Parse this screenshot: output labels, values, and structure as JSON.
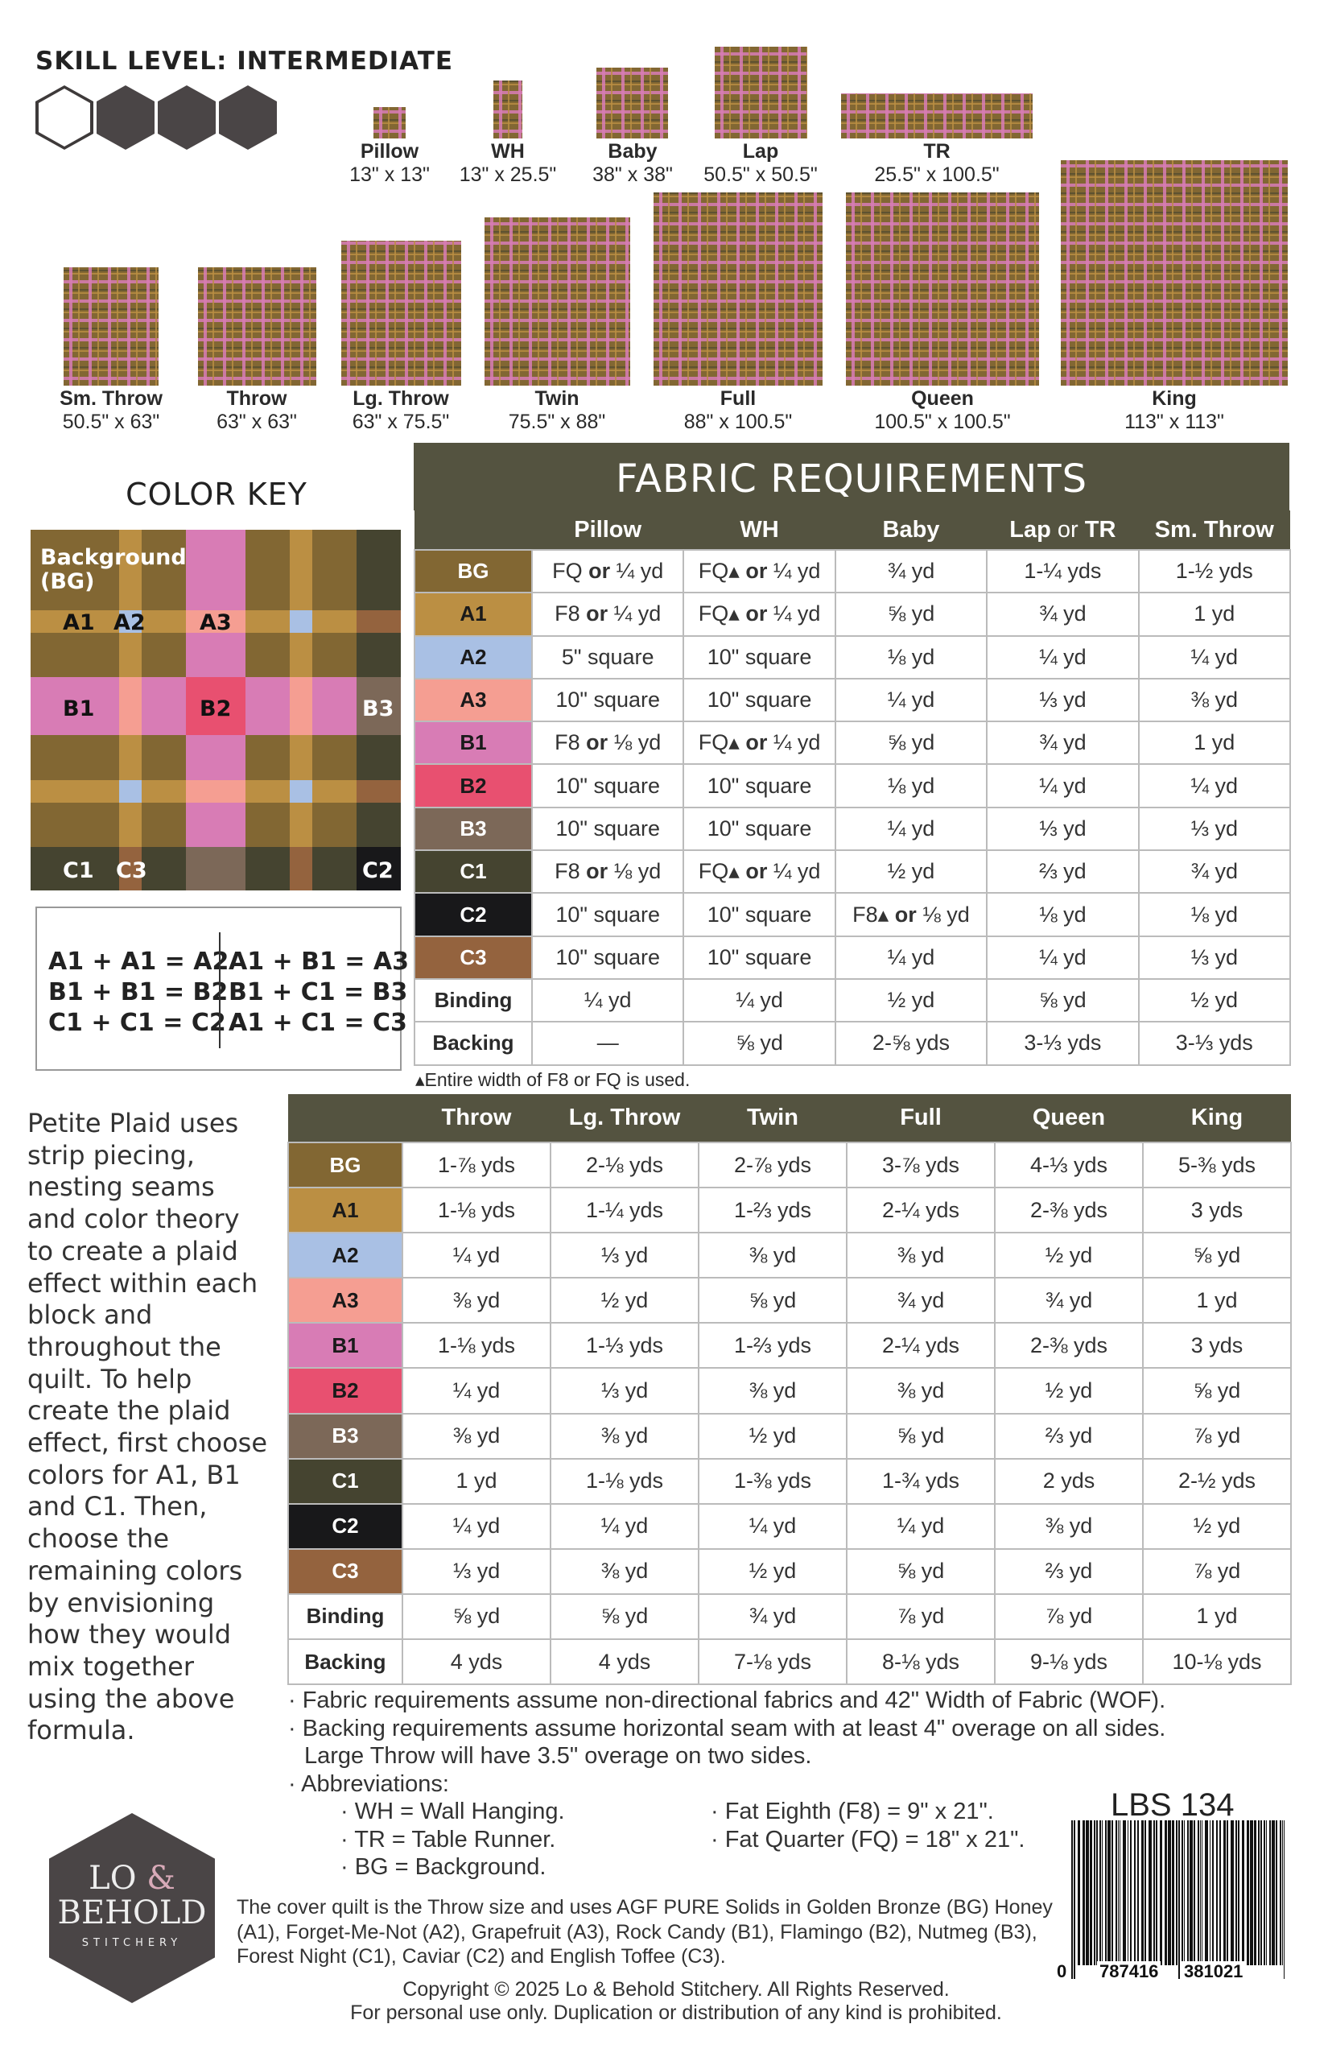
{
  "skill_level": "SKILL LEVEL: INTERMEDIATE",
  "skill_rating": {
    "filled": 3,
    "total": 4
  },
  "sizes": [
    {
      "name": "Pillow",
      "dims": "13\" x 13\""
    },
    {
      "name": "WH",
      "dims": "13\" x 25.5\""
    },
    {
      "name": "Baby",
      "dims": "38\" x 38\""
    },
    {
      "name": "Lap",
      "dims": "50.5\" x 50.5\""
    },
    {
      "name": "TR",
      "dims": "25.5\" x 100.5\""
    },
    {
      "name": "Sm. Throw",
      "dims": "50.5\" x 63\""
    },
    {
      "name": "Throw",
      "dims": "63\" x 63\""
    },
    {
      "name": "Lg. Throw",
      "dims": "63\" x 75.5\""
    },
    {
      "name": "Twin",
      "dims": "75.5\" x 88\""
    },
    {
      "name": "Full",
      "dims": "88\" x 100.5\""
    },
    {
      "name": "Queen",
      "dims": "100.5\" x 100.5\""
    },
    {
      "name": "King",
      "dims": "113\" x 113\""
    }
  ],
  "color_key": {
    "title": "COLOR KEY",
    "background_label": "Background (BG)",
    "labels": {
      "A1": "A1",
      "A2": "A2",
      "A3": "A3",
      "B1": "B1",
      "B2": "B2",
      "B3": "B3",
      "C1": "C1",
      "C2": "C2",
      "C3": "C3"
    },
    "colors": {
      "BG": "#826733",
      "A1": "#bb8f43",
      "A2": "#a9c0e4",
      "A3": "#f59e92",
      "B1": "#d87cb5",
      "B2": "#e85070",
      "B3": "#7c6858",
      "C1": "#454430",
      "C2": "#18181a",
      "C3": "#94633e"
    },
    "formulas_left": [
      "A1 + A1 = A2",
      "B1 + B1 = B2",
      "C1 + C1 = C2"
    ],
    "formulas_right": [
      "A1 + B1 = A3",
      "B1 + C1 = B3",
      "A1 + C1 = C3"
    ]
  },
  "fabric_requirements": {
    "title": "FABRIC REQUIREMENTS",
    "header_color": "#545340",
    "table1": {
      "columns": [
        "Pillow",
        "WH",
        "Baby",
        "Lap or TR",
        "Sm. Throw"
      ],
      "rows": [
        {
          "label": "BG",
          "cells": [
            "FQ or ¼ yd",
            "FQ▴ or ¼ yd",
            "¾ yd",
            "1-¼ yds",
            "1-½ yds"
          ]
        },
        {
          "label": "A1",
          "cells": [
            "F8 or ¼ yd",
            "FQ▴ or ¼ yd",
            "⅝ yd",
            "¾ yd",
            "1 yd"
          ]
        },
        {
          "label": "A2",
          "cells": [
            "5\" square",
            "10\" square",
            "⅛ yd",
            "¼ yd",
            "¼ yd"
          ]
        },
        {
          "label": "A3",
          "cells": [
            "10\" square",
            "10\" square",
            "¼ yd",
            "⅓ yd",
            "⅜ yd"
          ]
        },
        {
          "label": "B1",
          "cells": [
            "F8 or ⅛ yd",
            "FQ▴ or ¼ yd",
            "⅝ yd",
            "¾ yd",
            "1 yd"
          ]
        },
        {
          "label": "B2",
          "cells": [
            "10\" square",
            "10\" square",
            "⅛ yd",
            "¼ yd",
            "¼ yd"
          ]
        },
        {
          "label": "B3",
          "cells": [
            "10\" square",
            "10\" square",
            "¼ yd",
            "⅓ yd",
            "⅓ yd"
          ]
        },
        {
          "label": "C1",
          "cells": [
            "F8 or ⅛ yd",
            "FQ▴ or ¼ yd",
            "½ yd",
            "⅔ yd",
            "¾ yd"
          ]
        },
        {
          "label": "C2",
          "cells": [
            "10\" square",
            "10\" square",
            "F8▴ or ⅛ yd",
            "⅛ yd",
            "⅛ yd"
          ]
        },
        {
          "label": "C3",
          "cells": [
            "10\" square",
            "10\" square",
            "¼ yd",
            "¼ yd",
            "⅓ yd"
          ]
        },
        {
          "label": "Binding",
          "cells": [
            "¼ yd",
            "¼ yd",
            "½ yd",
            "⅝ yd",
            "½ yd"
          ]
        },
        {
          "label": "Backing",
          "cells": [
            "—",
            "⅝ yd",
            "2-⅝ yds",
            "3-⅓ yds",
            "3-⅓ yds"
          ]
        }
      ],
      "footnote": "▴Entire width of F8 or FQ is used."
    },
    "table2": {
      "columns": [
        "Throw",
        "Lg. Throw",
        "Twin",
        "Full",
        "Queen",
        "King"
      ],
      "rows": [
        {
          "label": "BG",
          "cells": [
            "1-⅞ yds",
            "2-⅛ yds",
            "2-⅞ yds",
            "3-⅞ yds",
            "4-⅓ yds",
            "5-⅜ yds"
          ]
        },
        {
          "label": "A1",
          "cells": [
            "1-⅛ yds",
            "1-¼ yds",
            "1-⅔ yds",
            "2-¼ yds",
            "2-⅜ yds",
            "3 yds"
          ]
        },
        {
          "label": "A2",
          "cells": [
            "¼ yd",
            "⅓ yd",
            "⅜ yd",
            "⅜ yd",
            "½ yd",
            "⅝ yd"
          ]
        },
        {
          "label": "A3",
          "cells": [
            "⅜ yd",
            "½ yd",
            "⅝ yd",
            "¾ yd",
            "¾ yd",
            "1 yd"
          ]
        },
        {
          "label": "B1",
          "cells": [
            "1-⅛ yds",
            "1-⅓ yds",
            "1-⅔ yds",
            "2-¼ yds",
            "2-⅜ yds",
            "3 yds"
          ]
        },
        {
          "label": "B2",
          "cells": [
            "¼ yd",
            "⅓ yd",
            "⅜ yd",
            "⅜ yd",
            "½ yd",
            "⅝ yd"
          ]
        },
        {
          "label": "B3",
          "cells": [
            "⅜ yd",
            "⅜ yd",
            "½ yd",
            "⅝ yd",
            "⅔ yd",
            "⅞ yd"
          ]
        },
        {
          "label": "C1",
          "cells": [
            "1 yd",
            "1-⅛ yds",
            "1-⅜ yds",
            "1-¾ yds",
            "2 yds",
            "2-½ yds"
          ]
        },
        {
          "label": "C2",
          "cells": [
            "¼ yd",
            "¼ yd",
            "¼ yd",
            "¼ yd",
            "⅜ yd",
            "½ yd"
          ]
        },
        {
          "label": "C3",
          "cells": [
            "⅓ yd",
            "⅜ yd",
            "½ yd",
            "⅝ yd",
            "⅔ yd",
            "⅞ yd"
          ]
        },
        {
          "label": "Binding",
          "cells": [
            "⅝ yd",
            "⅝ yd",
            "¾ yd",
            "⅞ yd",
            "⅞ yd",
            "1 yd"
          ]
        },
        {
          "label": "Backing",
          "cells": [
            "4 yds",
            "4 yds",
            "7-⅛ yds",
            "8-⅛ yds",
            "9-⅛ yds",
            "10-⅛ yds"
          ]
        }
      ]
    }
  },
  "description": "Petite Plaid uses strip piecing, nesting seams and color theory to create a plaid effect within each block and throughout the quilt. To help create the plaid effect, first choose colors for A1, B1 and C1. Then, choose the remaining colors by envisioning how they would mix together using the above formula.",
  "notes": {
    "n1": "· Fabric requirements assume non-directional fabrics and 42\" Width of Fabric (WOF).",
    "n2": "· Backing requirements assume horizontal seam with at least 4\" overage on all sides.",
    "n2b": "Large Throw will have 3.5\" overage on two sides.",
    "n3": "· Abbreviations:",
    "abbr_left": [
      "· WH = Wall Hanging.",
      "· TR = Table Runner.",
      "· BG = Background."
    ],
    "abbr_right": [
      "· Fat Eighth (F8) = 9\" x 21\".",
      "· Fat Quarter (FQ) = 18\" x 21\"."
    ]
  },
  "logo": {
    "line1": "LO",
    "amp": "&",
    "line2": "BEHOLD",
    "line3": "STITCHERY"
  },
  "cover_text": "The cover quilt is the Throw size and uses AGF PURE Solids in Golden Bronze (BG) Honey (A1), Forget-Me-Not (A2), Grapefruit (A3), Rock Candy (B1), Flamingo (B2), Nutmeg (B3), Forest Night (C1), Caviar (C2) and English Toffee (C3).",
  "copyright": [
    "Copyright © 2025 Lo & Behold Stitchery. All Rights Reserved.",
    "For personal use only. Duplication or distribution of any kind is prohibited."
  ],
  "product_code": "LBS 134",
  "barcode_digits": [
    "0",
    "787416",
    "381021"
  ]
}
